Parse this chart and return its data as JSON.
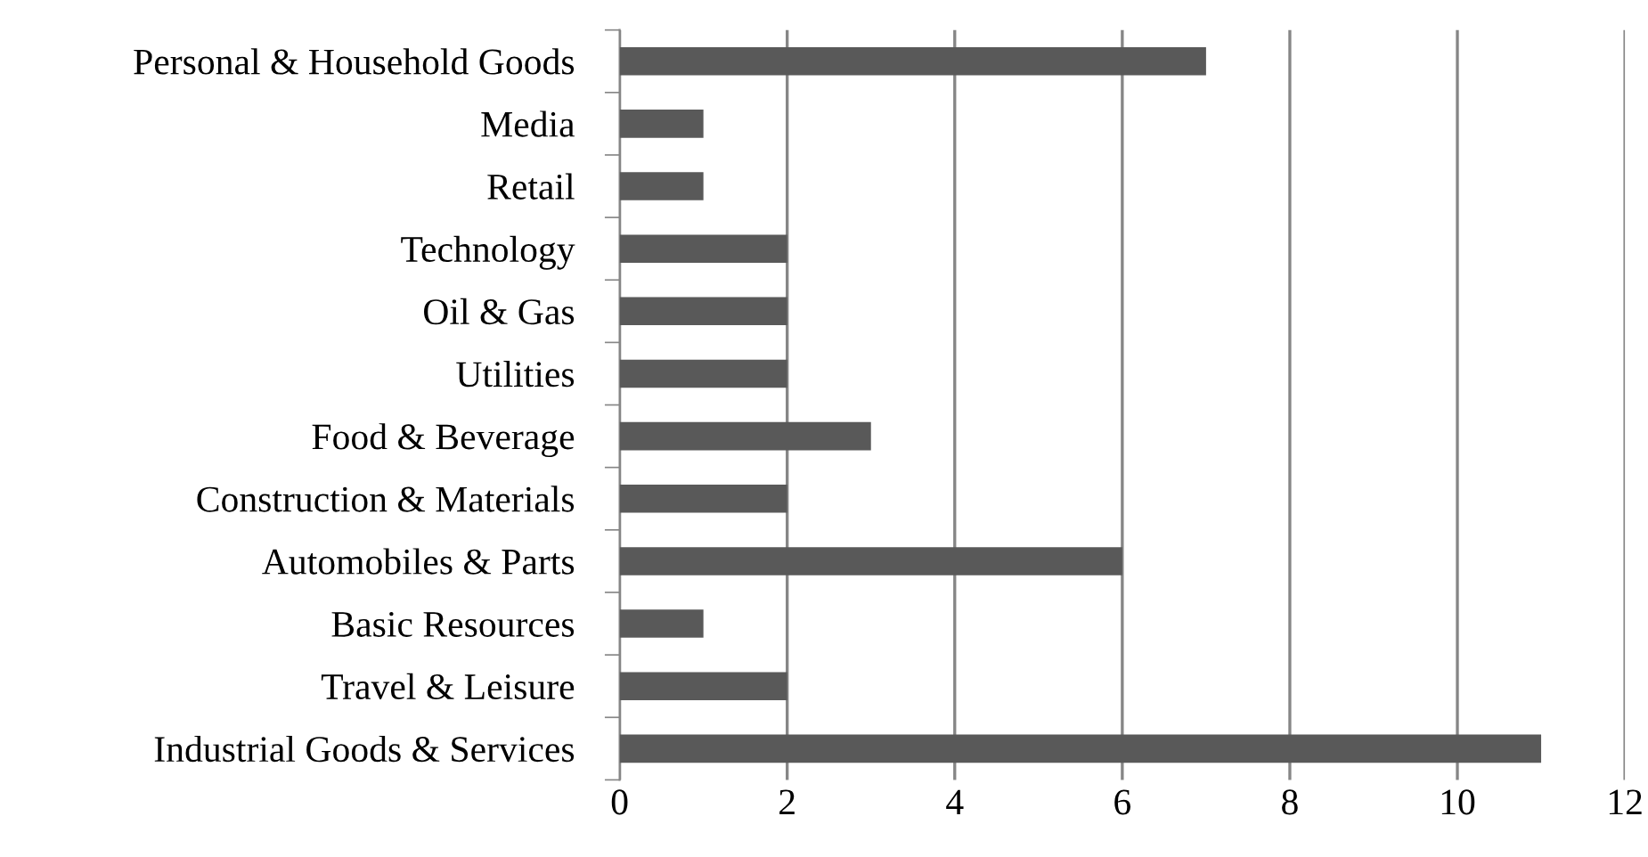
{
  "chart_data": {
    "type": "bar",
    "orientation": "horizontal",
    "categories": [
      "Personal & Household Goods",
      "Media",
      "Retail",
      "Technology",
      "Oil & Gas",
      "Utilities",
      "Food & Beverage",
      "Construction & Materials",
      "Automobiles & Parts",
      "Basic Resources",
      "Travel & Leisure",
      "Industrial Goods & Services"
    ],
    "values": [
      7,
      1,
      1,
      2,
      2,
      2,
      3,
      2,
      6,
      1,
      2,
      11
    ],
    "color": "#595959",
    "xlim": [
      0,
      12
    ],
    "xticks": [
      0,
      2,
      4,
      6,
      8,
      10,
      12
    ],
    "grid": "x"
  }
}
